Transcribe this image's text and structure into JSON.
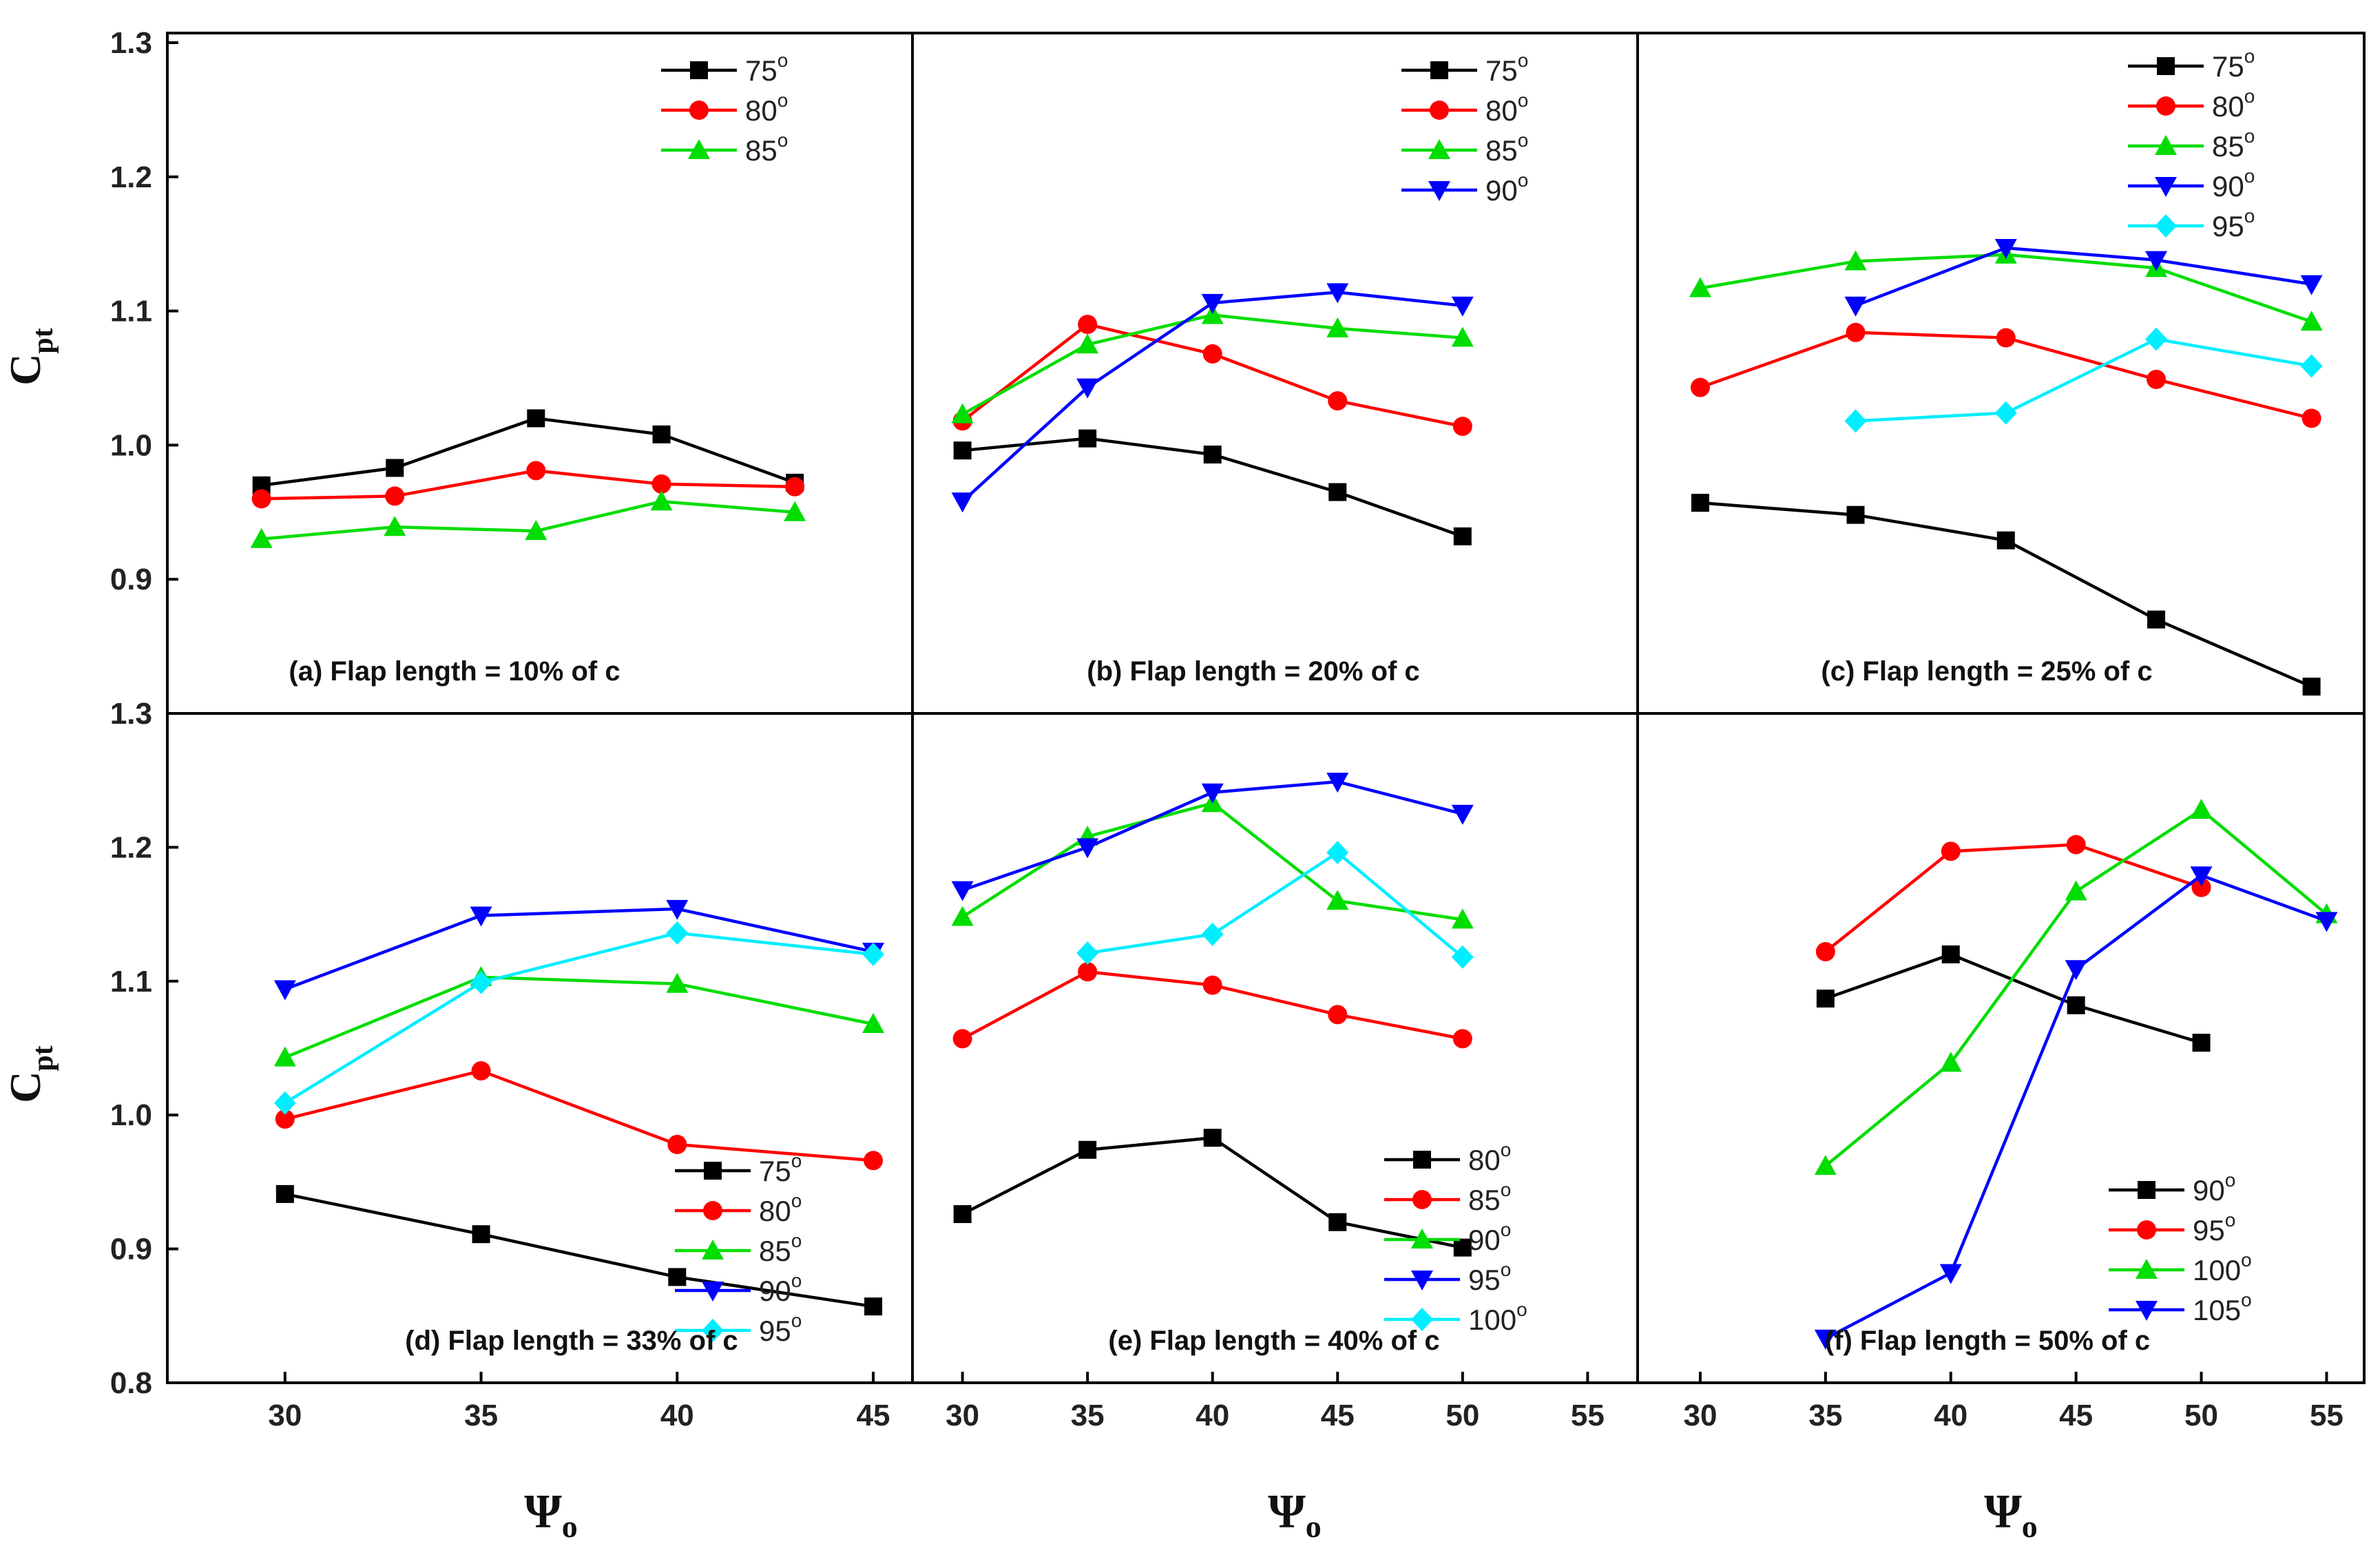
{
  "chart_data": {
    "type": "line",
    "y_axis_title": "C",
    "y_axis_title_sub": "pt",
    "x_axis_title": "Ψ",
    "x_axis_title_sub": "o",
    "degree_mark": "o",
    "panels": [
      {
        "id": "a",
        "caption": "(a) Flap length = 10% of c",
        "xlim": [
          27,
          46
        ],
        "ylim": [
          0.8,
          1.3
        ],
        "series": [
          {
            "name": "75",
            "color": "#000000",
            "marker": "square",
            "x": [
              29.4,
              32.8,
              36.4,
              39.6,
              43.0
            ],
            "y": [
              0.97,
              0.983,
              1.02,
              1.008,
              0.972
            ]
          },
          {
            "name": "80",
            "color": "#ff0000",
            "marker": "circle",
            "x": [
              29.4,
              32.8,
              36.4,
              39.6,
              43.0
            ],
            "y": [
              0.96,
              0.962,
              0.981,
              0.971,
              0.969
            ]
          },
          {
            "name": "85",
            "color": "#00dd00",
            "marker": "triangle-up",
            "x": [
              29.4,
              32.8,
              36.4,
              39.6,
              43.0
            ],
            "y": [
              0.93,
              0.939,
              0.936,
              0.958,
              0.95
            ]
          }
        ]
      },
      {
        "id": "b",
        "caption": "(b) Flap length = 20% of c",
        "xlim": [
          28,
          57
        ],
        "ylim": [
          0.8,
          1.3
        ],
        "series": [
          {
            "name": "75",
            "color": "#000000",
            "marker": "square",
            "x": [
              30,
              35,
              40,
              45,
              50
            ],
            "y": [
              0.996,
              1.005,
              0.993,
              0.965,
              0.932
            ]
          },
          {
            "name": "80",
            "color": "#ff0000",
            "marker": "circle",
            "x": [
              30,
              35,
              40,
              45,
              50
            ],
            "y": [
              1.018,
              1.09,
              1.068,
              1.033,
              1.014
            ]
          },
          {
            "name": "85",
            "color": "#00dd00",
            "marker": "triangle-up",
            "x": [
              30,
              35,
              40,
              45,
              50
            ],
            "y": [
              1.023,
              1.075,
              1.097,
              1.087,
              1.08
            ]
          },
          {
            "name": "90",
            "color": "#0000ff",
            "marker": "triangle-down",
            "x": [
              30,
              35,
              40,
              45,
              50
            ],
            "y": [
              0.958,
              1.043,
              1.106,
              1.114,
              1.104
            ]
          }
        ]
      },
      {
        "id": "c",
        "caption": "(c) Flap length = 25% of c",
        "xlim": [
          27.5,
          56.5
        ],
        "ylim": [
          0.8,
          1.3
        ],
        "series": [
          {
            "name": "75",
            "color": "#000000",
            "marker": "square",
            "x": [
              30,
              36.2,
              42.2,
              48.2,
              54.4
            ],
            "y": [
              0.957,
              0.948,
              0.929,
              0.87,
              0.82
            ]
          },
          {
            "name": "80",
            "color": "#ff0000",
            "marker": "circle",
            "x": [
              30,
              36.2,
              42.2,
              48.2,
              54.4
            ],
            "y": [
              1.043,
              1.084,
              1.08,
              1.049,
              1.02
            ]
          },
          {
            "name": "85",
            "color": "#00dd00",
            "marker": "triangle-up",
            "x": [
              30,
              36.2,
              42.2,
              48.2,
              54.4
            ],
            "y": [
              1.117,
              1.137,
              1.142,
              1.132,
              1.092
            ]
          },
          {
            "name": "90",
            "color": "#0000ff",
            "marker": "triangle-down",
            "x": [
              36.2,
              42.2,
              48.2,
              54.4
            ],
            "y": [
              1.104,
              1.147,
              1.138,
              1.12
            ]
          },
          {
            "name": "95",
            "color": "#00eeff",
            "marker": "diamond",
            "x": [
              36.2,
              42.2,
              48.2,
              54.4
            ],
            "y": [
              1.018,
              1.024,
              1.079,
              1.059
            ]
          }
        ]
      },
      {
        "id": "d",
        "caption": "(d) Flap length = 33% of c",
        "xlim": [
          27,
          46
        ],
        "ylim": [
          0.8,
          1.3
        ],
        "series": [
          {
            "name": "75",
            "color": "#000000",
            "marker": "square",
            "x": [
              30,
              35,
              40,
              45
            ],
            "y": [
              0.941,
              0.911,
              0.879,
              0.857
            ]
          },
          {
            "name": "80",
            "color": "#ff0000",
            "marker": "circle",
            "x": [
              30,
              35,
              40,
              45
            ],
            "y": [
              0.997,
              1.033,
              0.978,
              0.966
            ]
          },
          {
            "name": "85",
            "color": "#00dd00",
            "marker": "triangle-up",
            "x": [
              30,
              35,
              40,
              45
            ],
            "y": [
              1.043,
              1.103,
              1.098,
              1.068
            ]
          },
          {
            "name": "90",
            "color": "#0000ff",
            "marker": "triangle-down",
            "x": [
              30,
              35,
              40,
              45
            ],
            "y": [
              1.094,
              1.149,
              1.154,
              1.122
            ]
          },
          {
            "name": "95",
            "color": "#00eeff",
            "marker": "diamond",
            "x": [
              30,
              35,
              40,
              45
            ],
            "y": [
              1.009,
              1.099,
              1.136,
              1.12
            ]
          }
        ]
      },
      {
        "id": "e",
        "caption": "(e) Flap length = 40% of c",
        "xlim": [
          28,
          57
        ],
        "ylim": [
          0.8,
          1.3
        ],
        "series": [
          {
            "name": "80",
            "color": "#000000",
            "marker": "square",
            "x": [
              30,
              35,
              40,
              45,
              50
            ],
            "y": [
              0.926,
              0.974,
              0.983,
              0.92,
              0.901
            ]
          },
          {
            "name": "85",
            "color": "#ff0000",
            "marker": "circle",
            "x": [
              30,
              35,
              40,
              45,
              50
            ],
            "y": [
              1.057,
              1.107,
              1.097,
              1.075,
              1.057
            ]
          },
          {
            "name": "90",
            "color": "#00dd00",
            "marker": "triangle-up",
            "x": [
              30,
              35,
              40,
              45,
              50
            ],
            "y": [
              1.148,
              1.208,
              1.233,
              1.16,
              1.146
            ]
          },
          {
            "name": "95",
            "color": "#0000ff",
            "marker": "triangle-down",
            "x": [
              30,
              35,
              40,
              45,
              50
            ],
            "y": [
              1.168,
              1.2,
              1.241,
              1.249,
              1.225
            ]
          },
          {
            "name": "100",
            "color": "#00eeff",
            "marker": "diamond",
            "x": [
              35,
              40,
              45,
              50
            ],
            "y": [
              1.121,
              1.135,
              1.196,
              1.118
            ]
          }
        ]
      },
      {
        "id": "f",
        "caption": "(f) Flap length = 50% of c",
        "xlim": [
          27.5,
          56.5
        ],
        "ylim": [
          0.8,
          1.3
        ],
        "series": [
          {
            "name": "90",
            "color": "#000000",
            "marker": "square",
            "x": [
              35,
              40,
              45,
              50
            ],
            "y": [
              1.087,
              1.12,
              1.082,
              1.054
            ]
          },
          {
            "name": "95",
            "color": "#ff0000",
            "marker": "circle",
            "x": [
              35,
              40,
              45,
              50
            ],
            "y": [
              1.122,
              1.197,
              1.202,
              1.17
            ]
          },
          {
            "name": "100",
            "color": "#00dd00",
            "marker": "triangle-up",
            "x": [
              35,
              40,
              45,
              50,
              55
            ],
            "y": [
              0.962,
              1.039,
              1.167,
              1.228,
              1.15
            ]
          },
          {
            "name": "105",
            "color": "#0000ff",
            "marker": "triangle-down",
            "x": [
              35,
              40,
              45,
              50,
              55
            ],
            "y": [
              0.833,
              0.882,
              1.109,
              1.179,
              1.145
            ]
          }
        ]
      }
    ],
    "y_ticks": {
      "top_row": [
        "1.3",
        "1.2",
        "1.1",
        "1.0",
        "0.9",
        "1.3"
      ],
      "bottom_row": [
        "1.3",
        "1.2",
        "1.1",
        "1.0",
        "0.9",
        "0.8"
      ]
    },
    "x_ticks": [
      {
        "panel": "d",
        "values": [
          30,
          35,
          40,
          45
        ],
        "labels": [
          "30",
          "35",
          "40",
          "45"
        ]
      },
      {
        "panel": "e",
        "values": [
          30,
          35,
          40,
          45,
          50,
          55
        ],
        "labels": [
          "30",
          "35",
          "40",
          "45",
          "50",
          "55"
        ]
      },
      {
        "panel": "f",
        "values": [
          30,
          35,
          40,
          45,
          50,
          55
        ],
        "labels": [
          "30",
          "35",
          "40",
          "45",
          "50",
          "55"
        ]
      }
    ]
  }
}
